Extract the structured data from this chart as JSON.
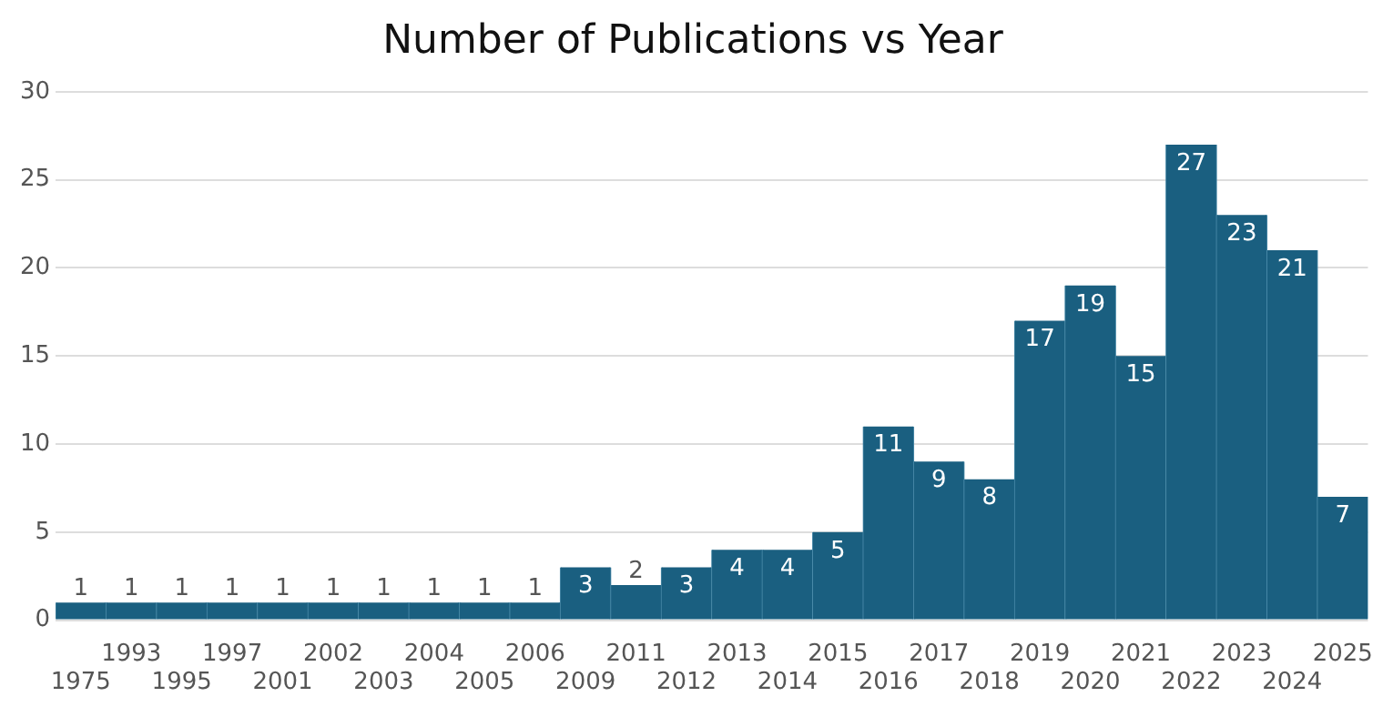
{
  "chart_data": {
    "type": "bar",
    "title": "Number of Publications vs Year",
    "categories": [
      "1975",
      "1993",
      "1995",
      "1997",
      "2001",
      "2002",
      "2003",
      "2004",
      "2005",
      "2006",
      "2009",
      "2011",
      "2012",
      "2013",
      "2014",
      "2015",
      "2016",
      "2017",
      "2018",
      "2019",
      "2020",
      "2021",
      "2022",
      "2023",
      "2024",
      "2025"
    ],
    "values": [
      1,
      1,
      1,
      1,
      1,
      1,
      1,
      1,
      1,
      1,
      3,
      2,
      3,
      4,
      4,
      5,
      11,
      9,
      8,
      17,
      19,
      15,
      27,
      23,
      21,
      7
    ],
    "color": "#1a5f80",
    "ylim": [
      0,
      30
    ],
    "yticks": [
      0,
      5,
      10,
      15,
      20,
      25,
      30
    ],
    "grid": "y",
    "legend": false,
    "data_labels": true
  }
}
